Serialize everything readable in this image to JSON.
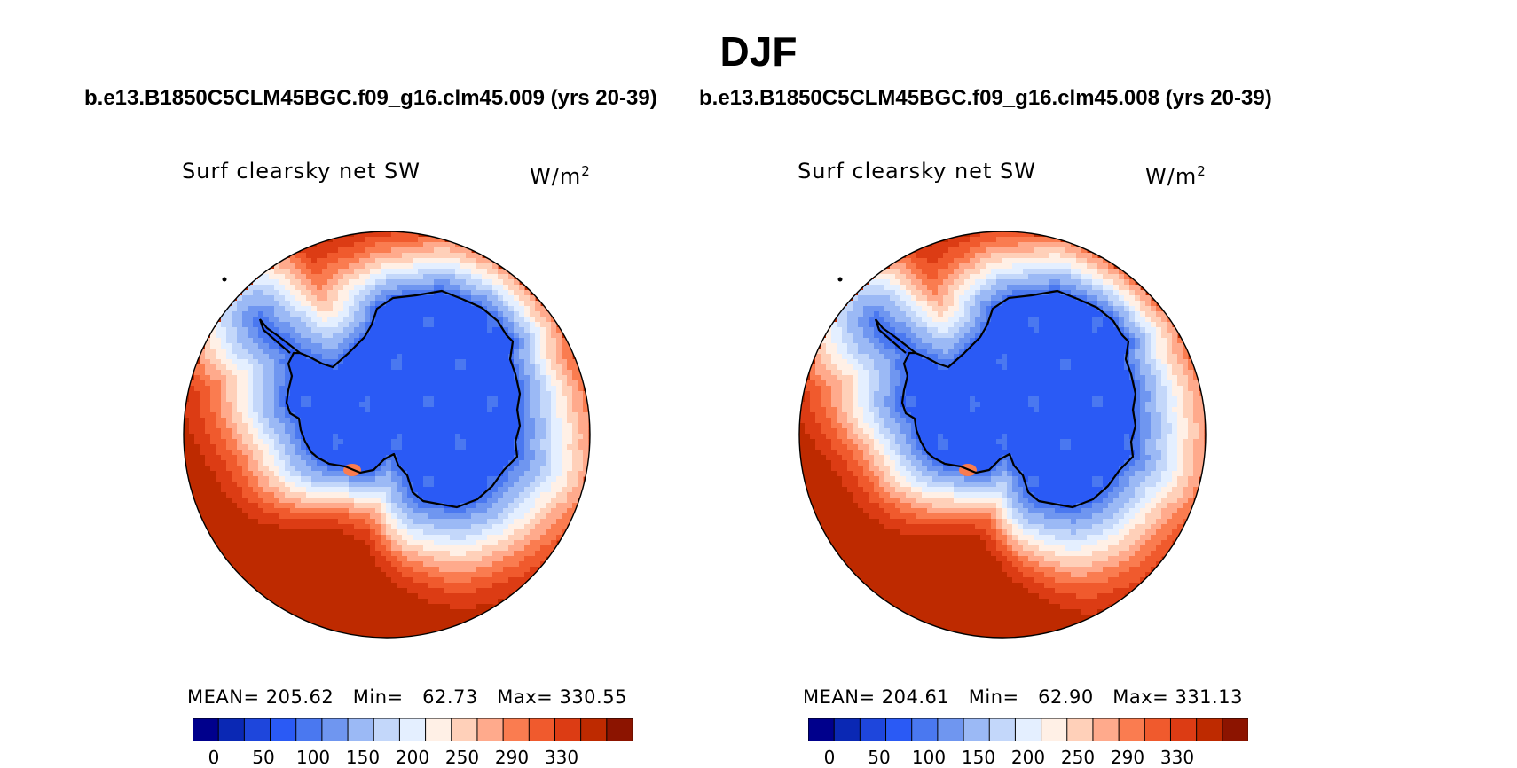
{
  "header": {
    "title": "DJF",
    "left_case": "b.e13.B1850C5CLM45BGC.f09_g16.clm45.009 (yrs 20-39)",
    "right_case": "b.e13.B1850C5CLM45BGC.f09_g16.clm45.008 (yrs 20-39)"
  },
  "panels": [
    {
      "variable": "Surf clearsky net SW",
      "units_base": "W/m",
      "units_exp": "2",
      "stats": "MEAN= 205.62   Min=   62.73   Max= 330.55"
    },
    {
      "variable": "Surf clearsky net SW",
      "units_base": "W/m",
      "units_exp": "2",
      "stats": "MEAN= 204.61   Min=   62.90   Max= 331.13"
    }
  ],
  "colorbar": {
    "colors": [
      "#00008c",
      "#0a28b4",
      "#1e46dc",
      "#2a5af5",
      "#4a78f0",
      "#6f96f0",
      "#9bb9f5",
      "#c3d7fa",
      "#e4efff",
      "#fff0e6",
      "#ffd0b9",
      "#ffaa8c",
      "#fa7c50",
      "#f05a2d",
      "#dc3c14",
      "#be2a00",
      "#8c1400"
    ],
    "labels": [
      "0",
      "50",
      "100",
      "150",
      "200",
      "250",
      "290",
      "330"
    ]
  }
}
